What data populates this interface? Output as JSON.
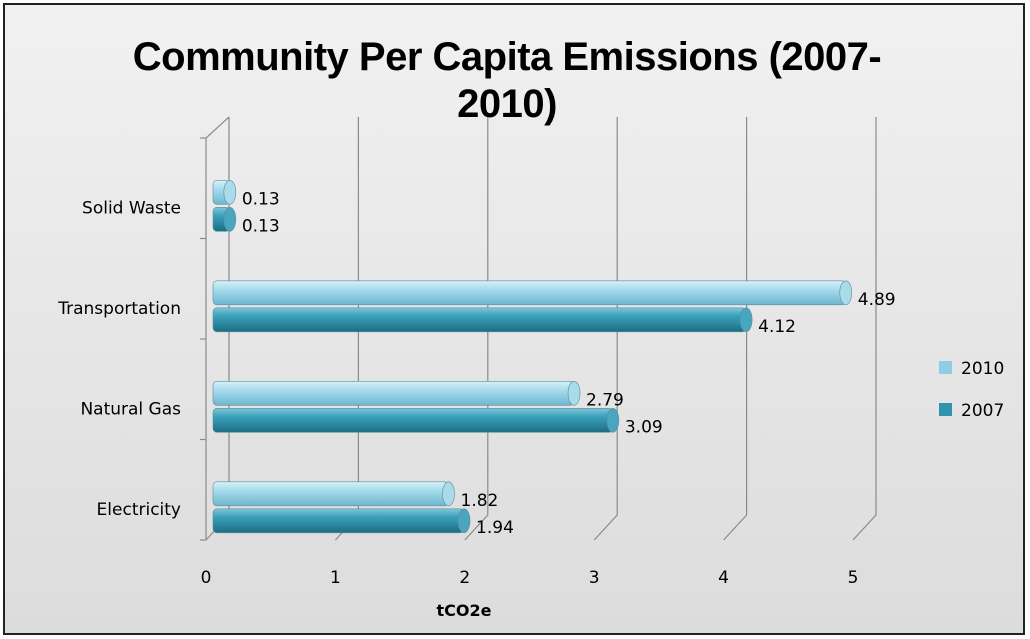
{
  "chart_data": {
    "type": "bar",
    "orientation": "horizontal",
    "title_lines": [
      "Community Per Capita Emissions (2007-",
      "2010)"
    ],
    "categories": [
      "Electricity",
      "Natural Gas",
      "Transportation",
      "Solid Waste"
    ],
    "series": [
      {
        "name": "2010",
        "values": [
          1.82,
          2.79,
          4.89,
          0.13
        ],
        "labels": [
          "1.82",
          "2.79",
          "4.89",
          "0.13"
        ],
        "color": "#8fcde3"
      },
      {
        "name": "2007",
        "values": [
          1.94,
          3.09,
          4.12,
          0.13
        ],
        "labels": [
          "1.94",
          "3.09",
          "4.12",
          "0.13"
        ],
        "color": "#2f93ad"
      }
    ],
    "xlim": [
      0,
      5
    ],
    "xticks": [
      "0",
      "1",
      "2",
      "3",
      "4",
      "5"
    ],
    "xlabel": "tCO2e",
    "ylabel": "",
    "grid": true,
    "legend_position": "right"
  }
}
